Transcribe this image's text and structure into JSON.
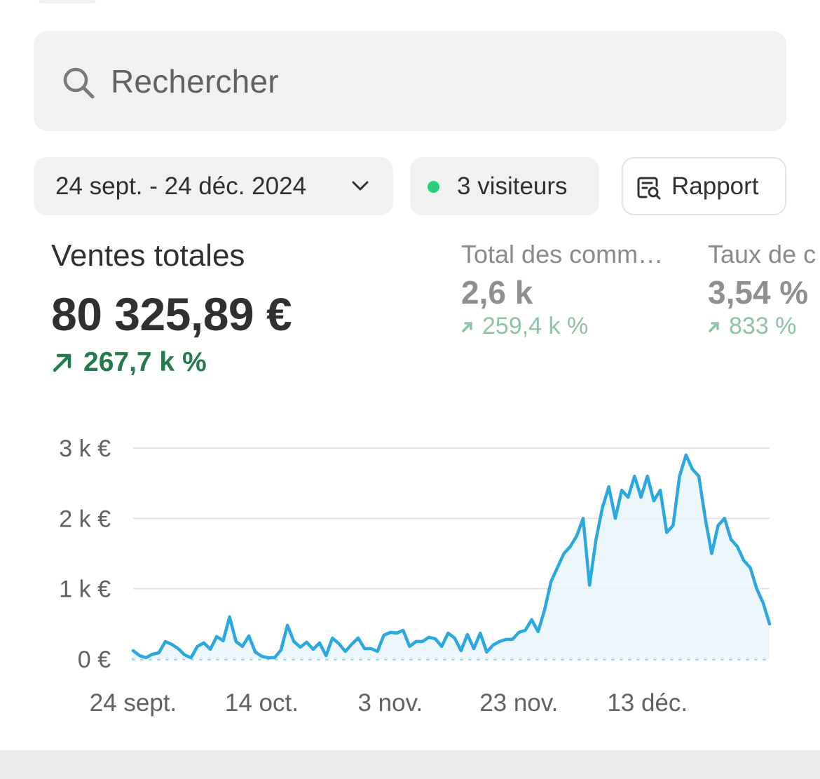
{
  "search": {
    "placeholder": "Rechercher",
    "icon": "search-icon"
  },
  "filters": {
    "date_range": "24 sept. - 24 déc. 2024",
    "visitors": "3 visiteurs",
    "visitors_dot_color": "#29d07b",
    "report": "Rapport"
  },
  "metrics": {
    "main": {
      "label": "Ventes totales",
      "value": "80 325,89 €",
      "change": "267,7 k %"
    },
    "orders": {
      "label": "Total des comm…",
      "value": "2,6 k",
      "change": "259,4 k %"
    },
    "conversion": {
      "label": "Taux de c",
      "value": "3,54 %",
      "change": "833 %"
    }
  },
  "colors": {
    "line": "#2aa8df",
    "positive": "#267a4f",
    "positive_muted": "#8ec3a6"
  },
  "chart_data": {
    "type": "line",
    "y_ticks": [
      "0 €",
      "1 k €",
      "2 k €",
      "3 k €"
    ],
    "x_ticks": [
      "24 sept.",
      "14 oct.",
      "3 nov.",
      "23 nov.",
      "13 déc."
    ],
    "ylim": [
      0,
      3000
    ],
    "x_start": "2024-09-24",
    "grid": true,
    "series": [
      {
        "values": [
          120,
          50,
          20,
          70,
          90,
          250,
          210,
          150,
          60,
          20,
          180,
          230,
          140,
          320,
          260,
          600,
          250,
          180,
          330,
          100,
          40,
          20,
          20,
          130,
          480,
          250,
          170,
          240,
          140,
          230,
          50,
          300,
          220,
          110,
          210,
          300,
          150,
          150,
          110,
          340,
          380,
          370,
          410,
          180,
          250,
          250,
          310,
          290,
          180,
          370,
          300,
          120,
          350,
          150,
          370,
          100,
          200,
          250,
          280,
          280,
          380,
          410,
          560,
          390,
          700,
          1100,
          1300,
          1500,
          1600,
          1750,
          2000,
          1050,
          1700,
          2150,
          2450,
          2000,
          2400,
          2300,
          2600,
          2300,
          2600,
          2250,
          2400,
          1800,
          1900,
          2600,
          2900,
          2700,
          2600,
          2000,
          1500,
          1900,
          2000,
          1700,
          1600,
          1400,
          1300,
          1000,
          800,
          500
        ]
      },
      {
        "values": [
          0,
          0,
          0,
          0,
          0,
          0,
          0,
          0,
          0,
          0,
          0,
          0,
          0,
          0,
          0,
          0,
          0,
          0,
          0,
          0,
          0,
          0,
          0,
          0,
          0,
          0,
          0,
          0,
          0,
          0,
          0,
          0,
          0,
          0,
          0,
          0,
          0,
          0,
          0,
          0,
          0,
          0,
          0,
          0,
          0,
          0,
          0,
          0,
          0,
          0,
          0,
          0,
          0,
          0,
          0,
          0,
          0,
          0,
          0,
          0,
          0,
          0,
          0,
          0,
          0,
          0,
          0,
          0,
          0,
          0,
          0,
          0,
          0,
          0,
          0,
          0,
          0,
          0,
          0,
          0,
          0,
          0,
          0,
          0,
          0,
          0,
          0,
          0,
          0,
          0,
          0,
          0,
          0,
          0,
          0,
          0,
          0,
          0,
          0,
          0
        ]
      }
    ]
  }
}
